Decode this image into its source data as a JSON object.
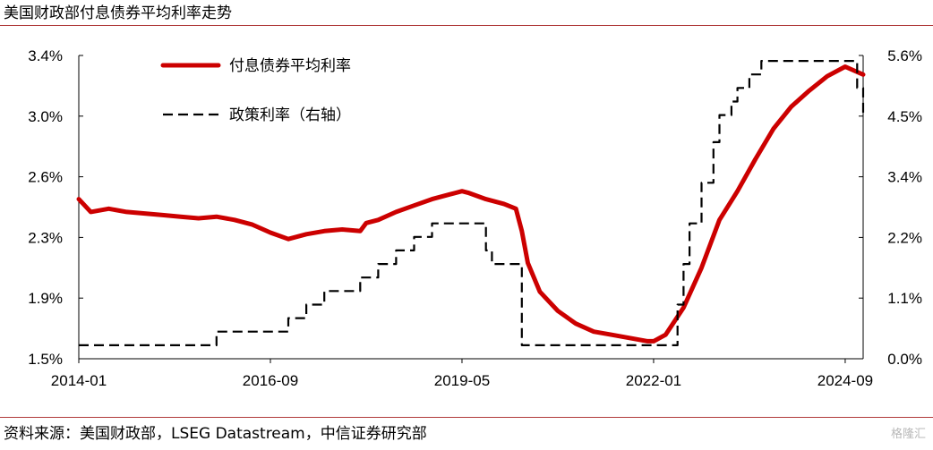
{
  "header": {
    "title": "美国财政部付息债券平均利率走势"
  },
  "footer": {
    "source": "资料来源：美国财政部，LSEG Datastream，中信证券研究部",
    "watermark": "格隆汇"
  },
  "chart_data": {
    "type": "line",
    "title": "美国财政部付息债券平均利率走势",
    "x_ticks": [
      "2014-01",
      "2016-09",
      "2019-05",
      "2022-01",
      "2024-09"
    ],
    "x_range": [
      "2014-01",
      "2024-12"
    ],
    "y_left": {
      "ticks": [
        "3.4%",
        "3.0%",
        "2.6%",
        "2.3%",
        "1.9%",
        "1.5%"
      ],
      "ylim": [
        1.5,
        3.4
      ]
    },
    "y_right": {
      "ticks": [
        "5.6%",
        "4.5%",
        "3.4%",
        "2.2%",
        "1.1%",
        "0.0%"
      ],
      "ylim": [
        0.0,
        5.6
      ]
    },
    "grid": false,
    "legend_position": "top-left",
    "colors": {
      "avg_rate": "#cc0000",
      "policy_rate": "#000000"
    },
    "series": [
      {
        "name": "付息债券平均利率",
        "axis": "left",
        "style": "solid",
        "x": [
          "2014-01",
          "2014-03",
          "2014-06",
          "2014-09",
          "2014-12",
          "2015-03",
          "2015-06",
          "2015-09",
          "2015-12",
          "2016-03",
          "2016-06",
          "2016-09",
          "2016-12",
          "2017-03",
          "2017-06",
          "2017-09",
          "2017-12",
          "2018-01",
          "2018-03",
          "2018-06",
          "2018-09",
          "2018-12",
          "2019-03",
          "2019-05",
          "2019-06",
          "2019-09",
          "2019-12",
          "2020-02",
          "2020-03",
          "2020-04",
          "2020-06",
          "2020-09",
          "2020-12",
          "2021-03",
          "2021-06",
          "2021-09",
          "2021-12",
          "2022-01",
          "2022-03",
          "2022-06",
          "2022-09",
          "2022-12",
          "2023-03",
          "2023-06",
          "2023-09",
          "2023-12",
          "2024-03",
          "2024-06",
          "2024-09",
          "2024-12"
        ],
        "y": [
          2.5,
          2.42,
          2.44,
          2.42,
          2.41,
          2.4,
          2.39,
          2.38,
          2.39,
          2.37,
          2.34,
          2.29,
          2.25,
          2.28,
          2.3,
          2.31,
          2.3,
          2.35,
          2.37,
          2.42,
          2.46,
          2.5,
          2.53,
          2.55,
          2.54,
          2.5,
          2.47,
          2.44,
          2.3,
          2.1,
          1.92,
          1.8,
          1.72,
          1.67,
          1.65,
          1.63,
          1.61,
          1.61,
          1.65,
          1.82,
          2.07,
          2.37,
          2.55,
          2.75,
          2.94,
          3.08,
          3.18,
          3.27,
          3.33,
          3.28
        ]
      },
      {
        "name": "政策利率（右轴）",
        "axis": "right",
        "style": "dashed",
        "x": [
          "2014-01",
          "2015-12",
          "2016-12",
          "2017-03",
          "2017-06",
          "2017-12",
          "2018-03",
          "2018-06",
          "2018-09",
          "2018-12",
          "2019-07",
          "2019-09",
          "2019-10",
          "2020-03",
          "2022-03",
          "2022-05",
          "2022-06",
          "2022-07",
          "2022-09",
          "2022-11",
          "2022-12",
          "2023-02",
          "2023-03",
          "2023-05",
          "2023-07",
          "2024-09",
          "2024-11",
          "2024-12"
        ],
        "y": [
          0.25,
          0.5,
          0.75,
          1.0,
          1.25,
          1.5,
          1.75,
          2.0,
          2.25,
          2.5,
          2.5,
          2.0,
          1.75,
          0.25,
          0.25,
          1.0,
          1.75,
          2.5,
          3.25,
          4.0,
          4.5,
          4.75,
          5.0,
          5.25,
          5.5,
          5.5,
          5.0,
          4.5
        ]
      }
    ]
  }
}
